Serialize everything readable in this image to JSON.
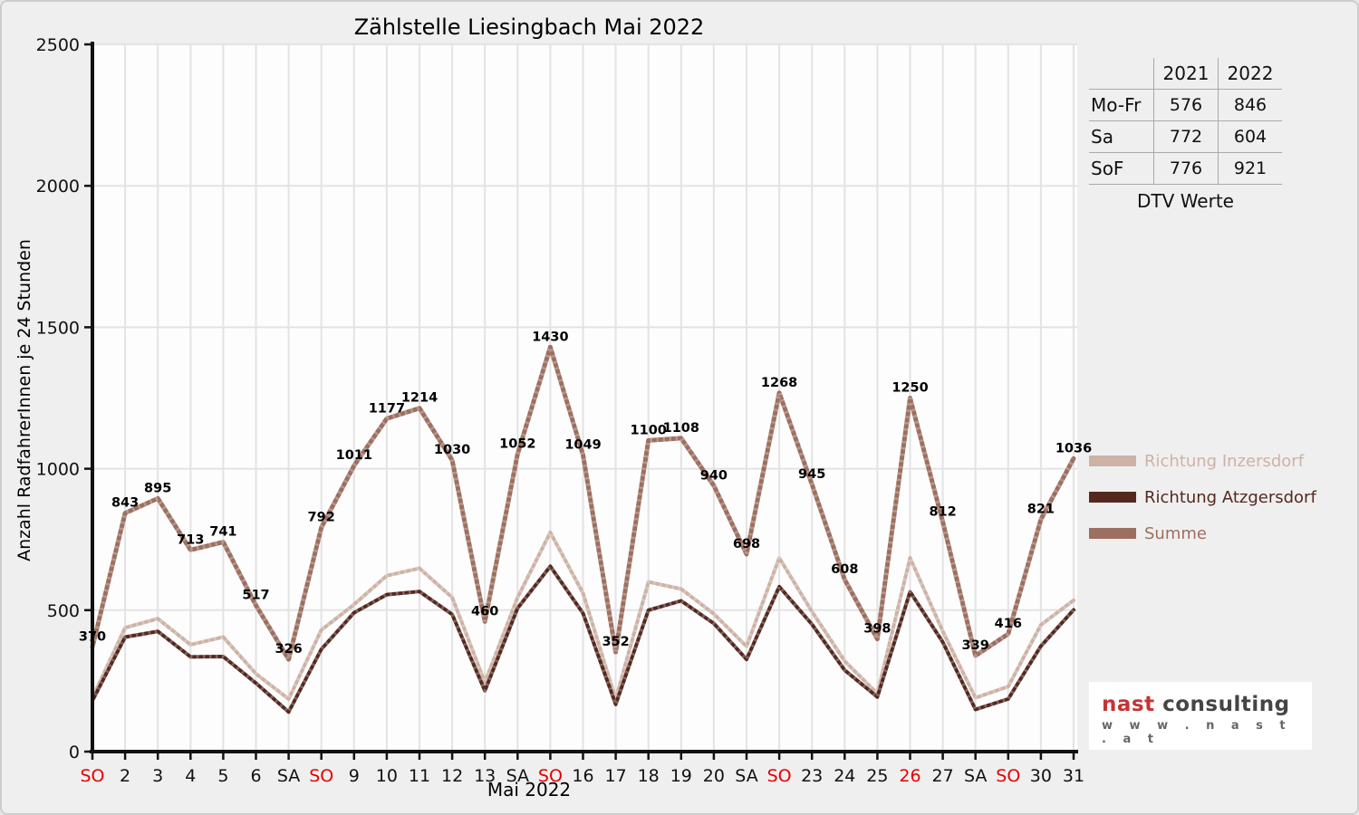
{
  "chart_data": {
    "type": "line",
    "title": "Zählstelle Liesingbach Mai 2022",
    "xlabel": "Mai 2022",
    "ylabel": "Anzahl RadfahrerInnen je 24 Stunden",
    "ylim": [
      0,
      2500
    ],
    "yticks": [
      0,
      500,
      1000,
      1500,
      2000,
      2500
    ],
    "grid": true,
    "legend_position": "right",
    "x_labels": [
      "SO",
      "2",
      "3",
      "4",
      "5",
      "6",
      "SA",
      "SO",
      "9",
      "10",
      "11",
      "12",
      "13",
      "SA",
      "SO",
      "16",
      "17",
      "18",
      "19",
      "20",
      "SA",
      "SO",
      "23",
      "24",
      "25",
      "26",
      "27",
      "SA",
      "SO",
      "30",
      "31"
    ],
    "red_x_label_indices": [
      0,
      7,
      14,
      21,
      25,
      28
    ],
    "series": [
      {
        "name": "Richtung Inzersdorf",
        "color": "#cdb2a6",
        "values": [
          190,
          438,
          470,
          378,
          405,
          275,
          186,
          430,
          520,
          622,
          648,
          545,
          245,
          545,
          775,
          560,
          185,
          600,
          575,
          487,
          372,
          685,
          495,
          320,
          205,
          685,
          425,
          190,
          230,
          448,
          535
        ]
      },
      {
        "name": "Richtung Atzgersdorf",
        "color": "#53291f",
        "values": [
          180,
          405,
          425,
          335,
          336,
          242,
          140,
          362,
          491,
          555,
          566,
          485,
          215,
          507,
          655,
          489,
          167,
          500,
          533,
          453,
          326,
          583,
          450,
          288,
          193,
          565,
          387,
          149,
          186,
          373,
          501
        ]
      },
      {
        "name": "Summe",
        "color": "#9c6f60",
        "data_labels": true,
        "values": [
          370,
          843,
          895,
          713,
          741,
          517,
          326,
          792,
          1011,
          1177,
          1214,
          1030,
          460,
          1052,
          1430,
          1049,
          352,
          1100,
          1108,
          940,
          698,
          1268,
          945,
          608,
          398,
          1250,
          812,
          339,
          416,
          821,
          1036
        ]
      }
    ],
    "colors": {
      "plot_bg": "#fdfdfd",
      "grid": "#e3e3e3",
      "axis": "#111111",
      "tick_label": "#111111",
      "red_label": "#e40000",
      "data_label": "#000000"
    }
  },
  "dtv_table": {
    "col_headers": [
      "2021",
      "2022"
    ],
    "rows": [
      {
        "label": "Mo-Fr",
        "values": [
          "576",
          "846"
        ]
      },
      {
        "label": "Sa",
        "values": [
          "772",
          "604"
        ]
      },
      {
        "label": "SoF",
        "values": [
          "776",
          "921"
        ]
      }
    ],
    "caption": "DTV Werte"
  },
  "legend": {
    "items": [
      {
        "label": "Richtung Inzersdorf",
        "color": "#cdb2a6"
      },
      {
        "label": "Richtung Atzgersdorf",
        "color": "#53291f"
      },
      {
        "label": "Summe",
        "color": "#9c6f60"
      }
    ]
  },
  "logo": {
    "brand_primary": "nast",
    "brand_secondary": " consulting",
    "url": "w w w . n a s t . a t",
    "primary_color": "#c43434",
    "secondary_color": "#454545",
    "url_color": "#666666"
  }
}
